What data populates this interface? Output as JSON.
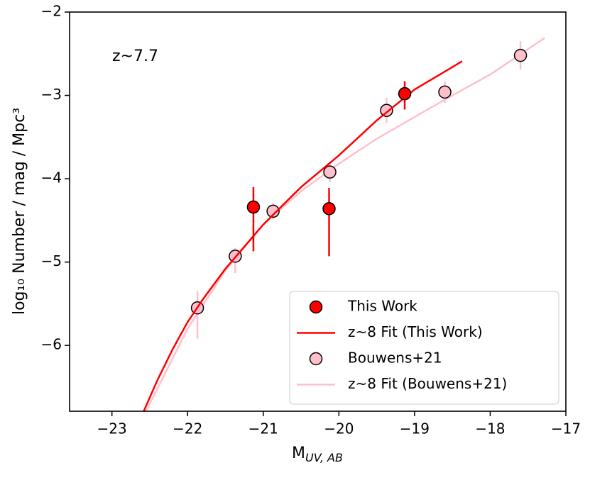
{
  "chart_data": {
    "type": "scatter",
    "annotation": "z~7.7",
    "xlabel": {
      "text": "M",
      "subscript": "UV, AB"
    },
    "ylabel": "log₁₀ Number / mag / Mpc³",
    "xlim": [
      -23.56,
      -17
    ],
    "ylim": [
      -6.79,
      -2
    ],
    "xticks": [
      {
        "value": -23,
        "label": "−23"
      },
      {
        "value": -22,
        "label": "−22"
      },
      {
        "value": -21,
        "label": "−21"
      },
      {
        "value": -20,
        "label": "−20"
      },
      {
        "value": -19,
        "label": "−19"
      },
      {
        "value": -18,
        "label": "−18"
      },
      {
        "value": -17,
        "label": "−17"
      }
    ],
    "yticks": [
      {
        "value": -6,
        "label": "−6"
      },
      {
        "value": -5,
        "label": "−5"
      },
      {
        "value": -4,
        "label": "−4"
      },
      {
        "value": -3,
        "label": "−3"
      },
      {
        "value": -2,
        "label": "−2"
      }
    ],
    "legend": "lower right",
    "series": [
      {
        "name": "This Work",
        "kind": "points",
        "color": "#ff0000",
        "x": [
          -21.13,
          -20.13,
          -19.13
        ],
        "y": [
          -4.34,
          -4.36,
          -2.98
        ],
        "yerr_low": [
          0.53,
          0.57,
          0.19
        ],
        "yerr_high": [
          0.24,
          0.25,
          0.15
        ]
      },
      {
        "name": "z~8 Fit (This Work)",
        "kind": "line",
        "color": "#ff0000",
        "x": [
          -22.58,
          -22.4,
          -22.2,
          -22,
          -21.8,
          -21.5,
          -21,
          -20.5,
          -20,
          -19.5,
          -19,
          -18.37
        ],
        "y": [
          -6.79,
          -6.42,
          -6.05,
          -5.72,
          -5.45,
          -5.08,
          -4.55,
          -4.1,
          -3.72,
          -3.3,
          -2.93,
          -2.59
        ]
      },
      {
        "name": "Bouwens+21",
        "kind": "points",
        "color": "#ffc0cb",
        "x": [
          -21.87,
          -21.37,
          -20.87,
          -20.12,
          -19.37,
          -18.6,
          -17.6
        ],
        "y": [
          -5.55,
          -4.93,
          -4.39,
          -3.92,
          -3.18,
          -2.96,
          -2.52
        ],
        "yerr_low": [
          0.37,
          0.2,
          0.1,
          0.12,
          0.15,
          0.13,
          0.17
        ],
        "yerr_high": [
          0.2,
          0.1,
          0.1,
          0.12,
          0.15,
          0.13,
          0.17
        ]
      },
      {
        "name": "z~8 Fit (Bouwens+21)",
        "kind": "line",
        "color": "#ffc0cb",
        "x": [
          -22.55,
          -22,
          -21.5,
          -21,
          -20.5,
          -20,
          -19.5,
          -19,
          -18.5,
          -18,
          -17.28
        ],
        "y": [
          -6.79,
          -5.8,
          -5.1,
          -4.55,
          -4.15,
          -3.82,
          -3.52,
          -3.26,
          -3.0,
          -2.75,
          -2.31
        ]
      }
    ]
  }
}
